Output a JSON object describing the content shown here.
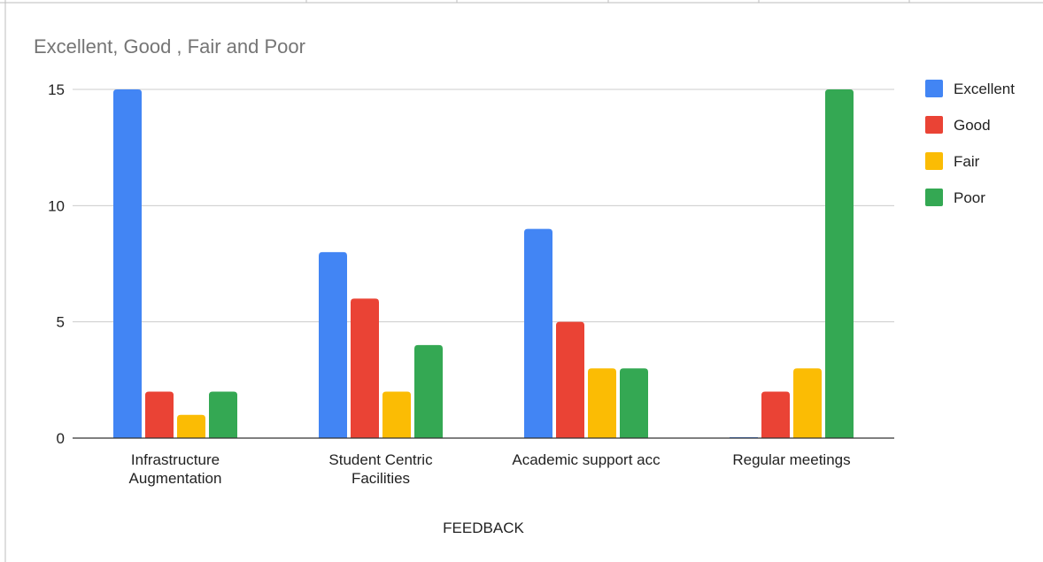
{
  "chart_data": {
    "type": "bar",
    "title": "Excellent, Good , Fair and Poor",
    "xlabel": "FEEDBACK",
    "ylabel": "",
    "categories": [
      [
        "Infrastructure",
        "Augmentation"
      ],
      [
        "Student Centric",
        "Facilities"
      ],
      [
        "Academic support acc"
      ],
      [
        "Regular meetings"
      ]
    ],
    "series": [
      {
        "name": "Excellent",
        "color": "#4285f4",
        "values": [
          15,
          8,
          9,
          0
        ]
      },
      {
        "name": "Good",
        "color": "#ea4335",
        "values": [
          2,
          6,
          5,
          2
        ]
      },
      {
        "name": "Fair",
        "color": "#fbbc04",
        "values": [
          1,
          2,
          3,
          3
        ]
      },
      {
        "name": "Poor",
        "color": "#34a853",
        "values": [
          2,
          4,
          3,
          15
        ]
      }
    ],
    "ylim": [
      0,
      15
    ],
    "yticks": [
      0,
      5,
      10,
      15
    ],
    "grid": true,
    "legend_position": "right"
  }
}
